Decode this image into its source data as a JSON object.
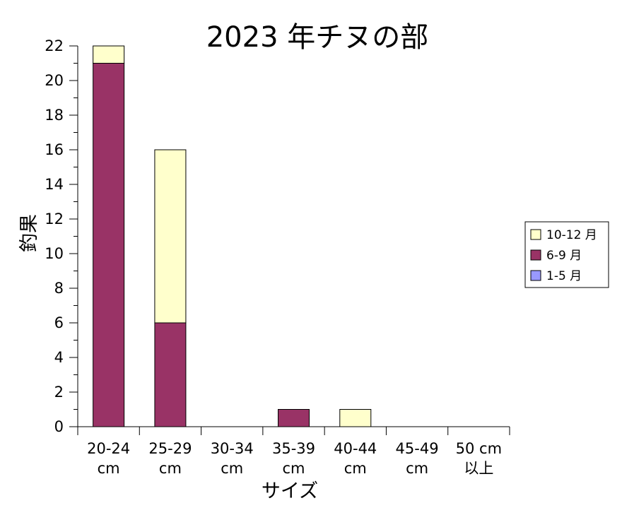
{
  "chart_data": {
    "type": "bar",
    "stacked": true,
    "title": "2023 年チヌの部",
    "xlabel": "サイズ",
    "ylabel": "釣果",
    "ylim": [
      0,
      22
    ],
    "y_ticks": [
      "0",
      "2",
      "4",
      "6",
      "8",
      "10",
      "12",
      "14",
      "16",
      "18",
      "20",
      "22"
    ],
    "categories": [
      [
        "20-24",
        "cm"
      ],
      [
        "25-29",
        "cm"
      ],
      [
        "30-34",
        "cm"
      ],
      [
        "35-39",
        "cm"
      ],
      [
        "40-44",
        "cm"
      ],
      [
        "45-49",
        "cm"
      ],
      [
        "50 cm",
        "以上"
      ]
    ],
    "series": [
      {
        "name": "1-5 月",
        "color": "#9999ff",
        "values": [
          0,
          0,
          0,
          0,
          0,
          0,
          0
        ]
      },
      {
        "name": "6-9 月",
        "color": "#993366",
        "values": [
          21,
          6,
          0,
          1,
          0,
          0,
          0
        ]
      },
      {
        "name": "10-12 月",
        "color": "#ffffcc",
        "values": [
          1,
          10,
          0,
          0,
          1,
          0,
          0
        ]
      }
    ],
    "legend_position": "right",
    "legend_order": [
      "10-12 月",
      "6-9 月",
      "1-5 月"
    ],
    "grid": false
  }
}
